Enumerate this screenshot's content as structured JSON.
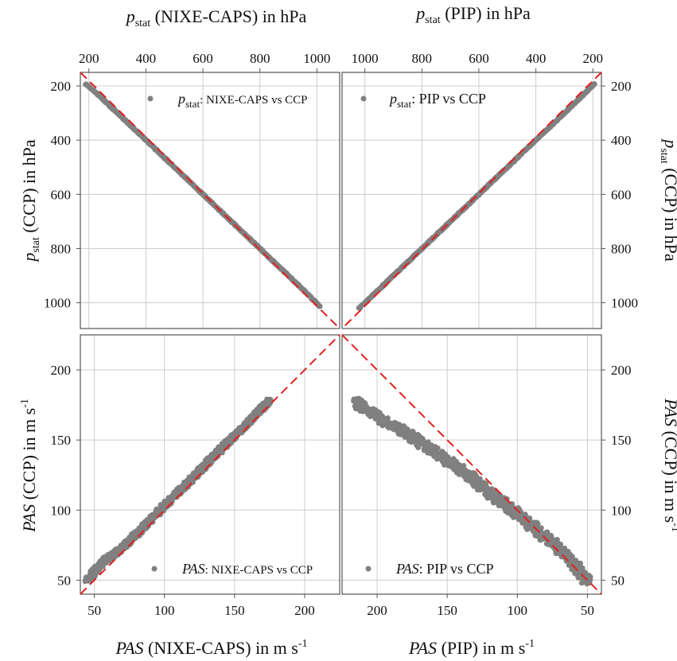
{
  "colors": {
    "points": "#808080",
    "reference_line": "#e02020",
    "grid": "#cccccc",
    "frame": "#555555"
  },
  "axis_titles": {
    "top_left": {
      "var": "p",
      "sub": "stat",
      "rest": " (NIXE-CAPS) in hPa"
    },
    "top_right": {
      "var": "p",
      "sub": "stat",
      "rest": " (PIP) in hPa"
    },
    "left_top": {
      "var": "p",
      "sub": "stat",
      "rest": " (CCP) in hPa"
    },
    "right_top": {
      "var": "p",
      "sub": "stat",
      "rest": " (CCP) in hPa"
    },
    "left_bottom": {
      "var": "PAS",
      "rest": " (CCP) in m s",
      "sup": "-1"
    },
    "right_bottom": {
      "var": "PAS",
      "rest": " (CCP) in m s",
      "sup": "-1"
    },
    "bottom_left": {
      "var": "PAS",
      "rest": " (NIXE-CAPS) in m s",
      "sup": "-1"
    },
    "bottom_right": {
      "var": "PAS",
      "rest": " (PIP) in m s",
      "sup": "-1"
    }
  },
  "legends": {
    "tl": {
      "var": "p",
      "sub": "stat",
      "rest": ": NIXE-CAPS vs CCP"
    },
    "tr": {
      "var": "p",
      "sub": "stat",
      "rest": ": PIP vs CCP"
    },
    "bl": {
      "var": "PAS",
      "rest": ": NIXE-CAPS vs CCP"
    },
    "br": {
      "var": "PAS",
      "rest": ": PIP vs CCP"
    }
  },
  "chart_data": [
    {
      "panel": "top-left",
      "type": "scatter",
      "x_axis": {
        "label": "p_stat (NIXE-CAPS) in hPa",
        "position": "top",
        "range": [
          170,
          1080
        ],
        "ticks": [
          200,
          400,
          600,
          800,
          1000
        ]
      },
      "y_axis": {
        "label": "p_stat (CCP) in hPa",
        "position": "left",
        "inverted": true,
        "range": [
          150,
          1095
        ],
        "ticks": [
          200,
          400,
          600,
          800,
          1000
        ]
      },
      "reference_line": "1:1, dashed red",
      "series": [
        {
          "name": "p_stat: NIXE-CAPS vs CCP",
          "x": [
            190,
            250,
            300,
            350,
            400,
            450,
            500,
            550,
            600,
            650,
            700,
            750,
            800,
            850,
            900,
            950,
            1010
          ],
          "y": [
            193,
            250,
            300,
            350,
            400,
            450,
            500,
            550,
            600,
            650,
            700,
            750,
            800,
            850,
            900,
            950,
            1013
          ]
        }
      ],
      "grid": true,
      "legend_position": "top-right"
    },
    {
      "panel": "top-right",
      "type": "scatter",
      "x_axis": {
        "label": "p_stat (PIP) in hPa",
        "position": "top",
        "inverted": true,
        "range": [
          1080,
          170
        ],
        "ticks": [
          1000,
          800,
          600,
          400,
          200
        ]
      },
      "y_axis": {
        "label": "p_stat (CCP) in hPa",
        "position": "right",
        "inverted": true,
        "range": [
          150,
          1095
        ],
        "ticks": [
          200,
          400,
          600,
          800,
          1000
        ]
      },
      "reference_line": "1:1, dashed red",
      "series": [
        {
          "name": "p_stat: PIP vs CCP",
          "x": [
            1020,
            950,
            900,
            850,
            800,
            750,
            700,
            650,
            600,
            550,
            500,
            450,
            400,
            350,
            300,
            250,
            195
          ],
          "y": [
            1020,
            950,
            900,
            850,
            800,
            750,
            700,
            650,
            600,
            550,
            500,
            450,
            400,
            350,
            300,
            250,
            193
          ]
        }
      ],
      "grid": true,
      "legend_position": "top-left"
    },
    {
      "panel": "bottom-left",
      "type": "scatter",
      "x_axis": {
        "label": "PAS (NIXE-CAPS) in m s-1",
        "position": "bottom",
        "range": [
          40,
          225
        ],
        "ticks": [
          50,
          100,
          150,
          200
        ]
      },
      "y_axis": {
        "label": "PAS (CCP) in m s-1",
        "position": "left",
        "range": [
          40,
          225
        ],
        "ticks": [
          50,
          100,
          150,
          200
        ]
      },
      "reference_line": "1:1, dashed red",
      "series": [
        {
          "name": "PAS: NIXE-CAPS vs CCP",
          "x": [
            45,
            50,
            55,
            60,
            65,
            70,
            75,
            80,
            85,
            90,
            95,
            100,
            105,
            110,
            115,
            120,
            125,
            130,
            135,
            140,
            145,
            150,
            155,
            160,
            165,
            170,
            175
          ],
          "y": [
            50,
            56,
            62,
            66,
            69,
            73,
            78,
            83,
            88,
            93,
            98,
            103,
            108,
            113,
            118,
            123,
            128,
            133,
            138,
            143,
            148,
            153,
            158,
            163,
            168,
            173,
            178
          ]
        }
      ],
      "grid": true,
      "legend_position": "bottom-right"
    },
    {
      "panel": "bottom-right",
      "type": "scatter",
      "x_axis": {
        "label": "PAS (PIP) in m s-1",
        "position": "bottom",
        "inverted": true,
        "range": [
          225,
          40
        ],
        "ticks": [
          200,
          150,
          100,
          50
        ]
      },
      "y_axis": {
        "label": "PAS (CCP) in m s-1",
        "position": "right",
        "range": [
          40,
          225
        ],
        "ticks": [
          50,
          100,
          150,
          200
        ]
      },
      "reference_line": "1:1, dashed red",
      "series": [
        {
          "name": "PAS: PIP vs CCP",
          "x": [
            215,
            205,
            195,
            185,
            175,
            165,
            155,
            145,
            135,
            125,
            115,
            105,
            95,
            85,
            75,
            65,
            55,
            50
          ],
          "y": [
            177,
            170,
            164,
            158,
            152,
            146,
            139,
            132,
            125,
            117,
            109,
            101,
            93,
            85,
            77,
            67,
            56,
            49
          ]
        }
      ],
      "grid": true,
      "legend_position": "bottom-left"
    }
  ]
}
